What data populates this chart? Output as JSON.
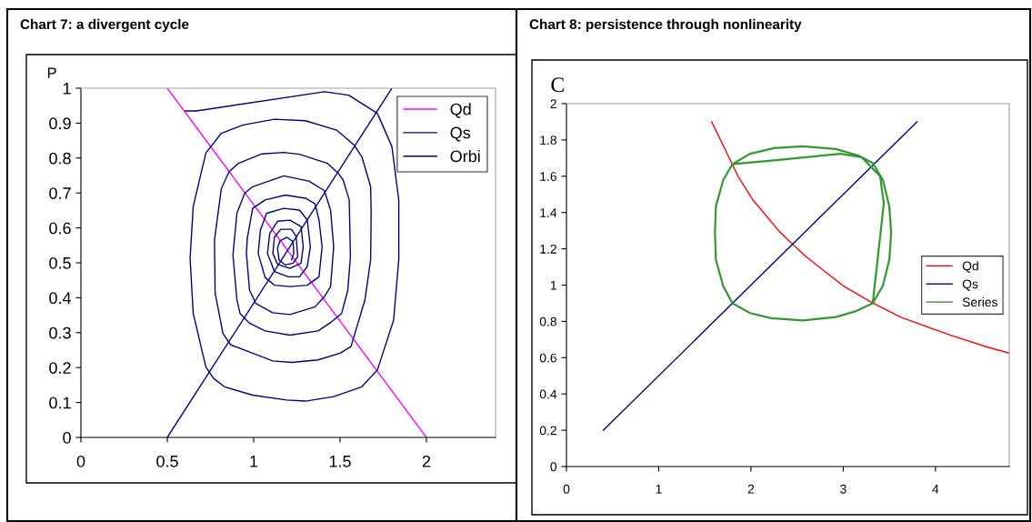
{
  "chart_data": [
    {
      "type": "line",
      "title": "Chart 7: a divergent cycle",
      "ylabel": "P",
      "xlim": [
        0,
        2.4
      ],
      "xticks": [
        0,
        0.5,
        1,
        1.5,
        2
      ],
      "ylim": [
        0,
        1
      ],
      "yticks": [
        0,
        0.1,
        0.2,
        0.3,
        0.4,
        0.5,
        0.6,
        0.7,
        0.8,
        0.9,
        1
      ],
      "grid": false,
      "legend": "top right",
      "marker": "none",
      "line_style": "solid",
      "series": [
        {
          "name": "Qd",
          "color": "#ff00ff",
          "x": [
            0.5,
            2
          ],
          "values": [
            1,
            0
          ]
        },
        {
          "name": "Qs",
          "color": "#000080",
          "x": [
            0.5,
            1.8
          ],
          "values": [
            0,
            1
          ]
        },
        {
          "name": "Orbi",
          "color": "#000080",
          "x": [
            0.605,
            0.668,
            1.41,
            1.55,
            1.716,
            1.8,
            1.84,
            1.84,
            1.81,
            1.716,
            1.626,
            1.463,
            1.3,
            1.19,
            0.994,
            0.831,
            0.768,
            0.723,
            0.65,
            0.632,
            0.65,
            0.723,
            0.813,
            0.94,
            1.12,
            1.3,
            1.48,
            1.58,
            1.626,
            1.677,
            1.68,
            1.677,
            1.644,
            1.563,
            1.5,
            1.373,
            1.22,
            1.11,
            0.994,
            0.867,
            0.822,
            0.777,
            0.773,
            0.813,
            0.858,
            0.912,
            1.048,
            1.174,
            1.265,
            1.427,
            1.49,
            1.518,
            1.553,
            1.56,
            1.545,
            1.509,
            1.445,
            1.373,
            1.21,
            1.066,
            0.976,
            0.921,
            0.903,
            0.88,
            0.903,
            0.948,
            0.994,
            1.174,
            1.319,
            1.409,
            1.445,
            1.463,
            1.445,
            1.409,
            1.355,
            1.21,
            1.11,
            1.012,
            0.976,
            0.958,
            0.963,
            0.994,
            1.066,
            1.183,
            1.3,
            1.355,
            1.378,
            1.396,
            1.378,
            1.31,
            1.21,
            1.12,
            1.066,
            1.026,
            1.039,
            1.075,
            1.174,
            1.265,
            1.31,
            1.328,
            1.31,
            1.265,
            1.201,
            1.12,
            1.08,
            1.093,
            1.138,
            1.21,
            1.274,
            1.287,
            1.274,
            1.21,
            1.138,
            1.111,
            1.12,
            1.156,
            1.219,
            1.246,
            1.255,
            1.228,
            1.183,
            1.147,
            1.138,
            1.152,
            1.192,
            1.228,
            1.232,
            1.219
          ],
          "values": [
            0.935,
            0.935,
            0.99,
            0.98,
            0.928,
            0.833,
            0.68,
            0.51,
            0.336,
            0.193,
            0.145,
            0.117,
            0.104,
            0.107,
            0.121,
            0.145,
            0.169,
            0.202,
            0.355,
            0.513,
            0.661,
            0.814,
            0.871,
            0.895,
            0.911,
            0.907,
            0.88,
            0.838,
            0.804,
            0.718,
            0.642,
            0.508,
            0.394,
            0.26,
            0.241,
            0.222,
            0.215,
            0.219,
            0.241,
            0.265,
            0.298,
            0.413,
            0.565,
            0.713,
            0.761,
            0.785,
            0.812,
            0.816,
            0.811,
            0.785,
            0.756,
            0.737,
            0.68,
            0.518,
            0.422,
            0.355,
            0.329,
            0.305,
            0.293,
            0.305,
            0.327,
            0.355,
            0.394,
            0.522,
            0.642,
            0.699,
            0.718,
            0.749,
            0.734,
            0.707,
            0.651,
            0.546,
            0.432,
            0.403,
            0.374,
            0.352,
            0.357,
            0.384,
            0.422,
            0.527,
            0.57,
            0.656,
            0.68,
            0.694,
            0.685,
            0.669,
            0.623,
            0.546,
            0.46,
            0.436,
            0.432,
            0.436,
            0.458,
            0.527,
            0.594,
            0.642,
            0.656,
            0.651,
            0.623,
            0.546,
            0.489,
            0.46,
            0.46,
            0.475,
            0.527,
            0.584,
            0.619,
            0.622,
            0.604,
            0.546,
            0.499,
            0.484,
            0.496,
            0.527,
            0.573,
            0.596,
            0.596,
            0.575,
            0.518,
            0.499,
            0.494,
            0.508,
            0.542,
            0.563,
            0.573,
            0.561,
            0.527,
            0.508
          ]
        }
      ]
    },
    {
      "type": "line",
      "title": "Chart 8: persistence through nonlinearity",
      "ylabel": "C",
      "xlim": [
        0,
        4.8
      ],
      "xticks": [
        0,
        1,
        2,
        3,
        4
      ],
      "ylim": [
        0,
        2
      ],
      "yticks": [
        0,
        0.2,
        0.4,
        0.6,
        0.8,
        1,
        1.2,
        1.4,
        1.6,
        1.8,
        2
      ],
      "grid": false,
      "legend": "right",
      "marker": "none",
      "line_style": "solid",
      "series": [
        {
          "name": "Qd",
          "color": "#ff0000",
          "x": [
            1.575,
            1.86,
            2.02,
            2.3,
            2.45,
            2.595,
            2.775,
            3.0,
            3.31,
            3.62,
            4.15,
            4.565,
            4.8
          ],
          "values": [
            1.9,
            1.6,
            1.47,
            1.3,
            1.226,
            1.158,
            1.085,
            0.996,
            0.904,
            0.824,
            0.726,
            0.658,
            0.625
          ]
        },
        {
          "name": "Qs",
          "color": "#000080",
          "x": [
            0.4,
            3.8
          ],
          "values": [
            0.2,
            1.9
          ]
        },
        {
          "name": "Series",
          "color": "#339933",
          "x": [
            1.8,
            2.3,
            2.97,
            3.2,
            3.4,
            3.44,
            3.32,
            3.13,
            2.92,
            2.56,
            2.22,
            1.99,
            1.8,
            1.7,
            1.62,
            1.61,
            1.62,
            1.7,
            1.8,
            1.99,
            2.25,
            2.56,
            2.92,
            3.17,
            3.32,
            3.43,
            3.5,
            3.52,
            3.5,
            3.43,
            3.32
          ],
          "values": [
            1.667,
            1.69,
            1.724,
            1.705,
            1.6,
            1.45,
            0.9,
            0.855,
            0.824,
            0.805,
            0.818,
            0.846,
            0.9,
            0.993,
            1.14,
            1.287,
            1.434,
            1.58,
            1.667,
            1.724,
            1.755,
            1.765,
            1.75,
            1.713,
            1.673,
            1.58,
            1.434,
            1.287,
            1.14,
            0.996,
            0.9
          ]
        }
      ]
    }
  ]
}
